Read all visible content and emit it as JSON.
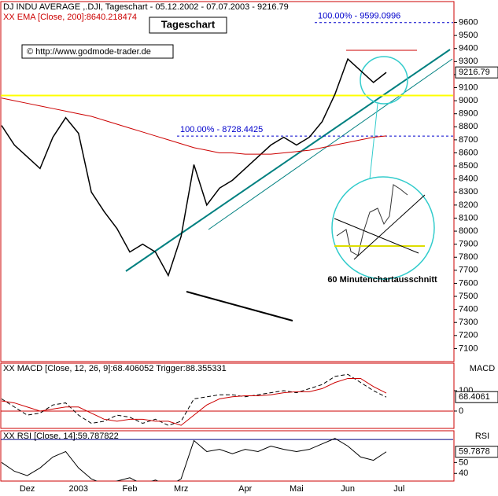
{
  "chart_data": [
    {
      "type": "line",
      "title": "DJ INDU AVERAGE ,.DJI, Tageschart - 05.12.2002 - 07.07.2003 - 9216.79",
      "subtitle": "XX EMA [Close, 200]:8640.218474",
      "badge": "Tageschart",
      "source": "© http://www.godmode-trader.de",
      "inset_label": "60 Minutenchartausschnitt",
      "last_label": "9216.79",
      "ylim": [
        7000,
        9760
      ],
      "yticks": [
        7100,
        7200,
        7300,
        7400,
        7500,
        7600,
        7700,
        7800,
        7900,
        8000,
        8100,
        8200,
        8300,
        8400,
        8500,
        8600,
        8700,
        8800,
        8900,
        9000,
        9100,
        9200,
        9300,
        9400,
        9500,
        9600
      ],
      "annotations": [
        {
          "text": "100.00% - 9599.0996",
          "value": 9599.0996
        },
        {
          "text": "100.00% - 8728.4425",
          "value": 8728.4425
        }
      ],
      "hlines": [
        {
          "value": 9040,
          "color": "#ffff00"
        }
      ],
      "series": [
        {
          "color": "#000000",
          "values": [
            8810,
            8660,
            8570,
            8480,
            8720,
            8870,
            8750,
            8300,
            8150,
            8020,
            7840,
            7900,
            7840,
            7660,
            7960,
            8510,
            8200,
            8330,
            8390,
            8480,
            8570,
            8660,
            8720,
            8660,
            8720,
            8840,
            9050,
            9320,
            9230,
            9140,
            9216.79,
            null
          ]
        },
        {
          "color": "#cc0000",
          "values": [
            9020,
            9000,
            8980,
            8960,
            8940,
            8920,
            8900,
            8880,
            8850,
            8820,
            8790,
            8760,
            8730,
            8700,
            8670,
            8640,
            8620,
            8600,
            8600,
            8590,
            8590,
            8590,
            8600,
            8610,
            8620,
            8640,
            8660,
            8680,
            8700,
            8720,
            8730,
            null
          ]
        }
      ]
    },
    {
      "type": "line",
      "title": "XX MACD [Close, 12, 26, 9]:68.406052 Trigger:88.355331",
      "axis_label": "MACD",
      "last_label": "68.4061",
      "ylim": [
        -85,
        235
      ],
      "yticks": [
        0,
        100
      ],
      "hlines": [
        {
          "value": 0,
          "color": "#cc0000"
        }
      ],
      "series": [
        {
          "color": "#000000",
          "values": [
            60,
            20,
            -20,
            -10,
            30,
            40,
            -20,
            -60,
            -50,
            -20,
            -30,
            -60,
            -40,
            -70,
            -50,
            60,
            70,
            80,
            80,
            70,
            80,
            90,
            100,
            90,
            110,
            130,
            170,
            180,
            140,
            100,
            68.406052,
            null
          ]
        },
        {
          "color": "#cc0000",
          "values": [
            50,
            40,
            20,
            0,
            10,
            20,
            20,
            -10,
            -40,
            -50,
            -40,
            -40,
            -50,
            -50,
            -70,
            -20,
            30,
            60,
            70,
            75,
            75,
            80,
            90,
            95,
            95,
            110,
            140,
            160,
            160,
            120,
            88.355331,
            null
          ]
        }
      ]
    },
    {
      "type": "line",
      "title": "XX RSI [Close, 14]:59.787822",
      "axis_label": "RSI",
      "last_label": "59.7878",
      "ylim": [
        33,
        79
      ],
      "yticks": [
        40,
        50
      ],
      "hlines": [
        {
          "value": 71,
          "color": "#000080"
        }
      ],
      "categories": [
        null,
        null,
        "Dez",
        null,
        null,
        null,
        "2003",
        null,
        null,
        null,
        "Feb",
        null,
        null,
        null,
        "Mrz",
        null,
        null,
        null,
        null,
        "Apr",
        null,
        null,
        null,
        "Mai",
        null,
        null,
        null,
        "Jun",
        null,
        null,
        null,
        "Jul"
      ],
      "series": [
        {
          "color": "#000000",
          "values": [
            50,
            42,
            38,
            45,
            55,
            60,
            45,
            35,
            30,
            33,
            36,
            30,
            34,
            28,
            35,
            70,
            60,
            62,
            58,
            62,
            60,
            65,
            62,
            60,
            62,
            67,
            72,
            65,
            55,
            52,
            59.787822,
            null
          ]
        }
      ]
    }
  ]
}
